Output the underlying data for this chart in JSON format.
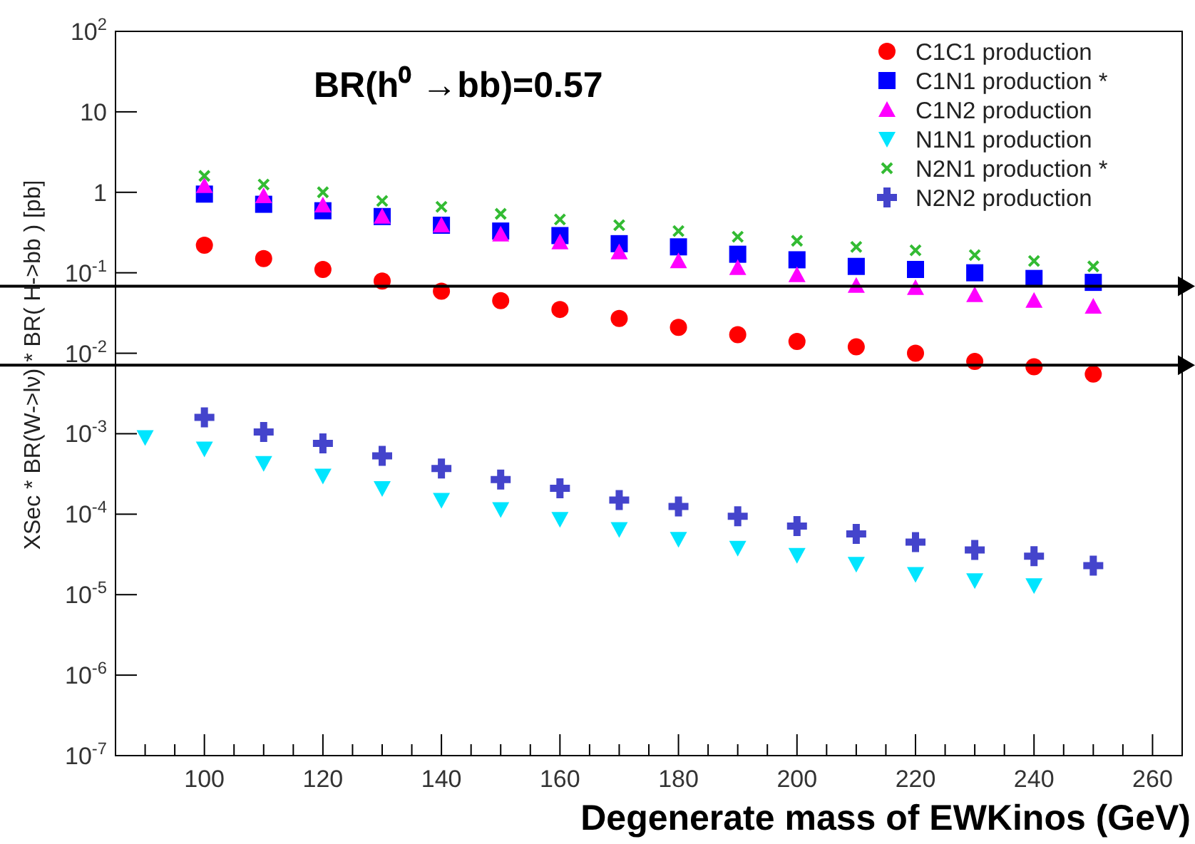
{
  "chart_data": {
    "type": "scatter",
    "xlabel": "Degenerate mass of EWKinos (GeV)",
    "ylabel": "XSec * BR(W->lν) * BR( H->bb ) [pb]",
    "annotations": [
      "BR(h⁰ →bb)=0.57"
    ],
    "log": "y",
    "grid": false,
    "legend": "top right",
    "xlim": [
      85,
      265
    ],
    "xticks": [
      {
        "value": 90,
        "label": null
      },
      {
        "value": 95,
        "label": null
      },
      100,
      {
        "value": 105,
        "label": null
      },
      {
        "value": 110,
        "label": null
      },
      {
        "value": 115,
        "label": null
      },
      120,
      {
        "value": 125,
        "label": null
      },
      {
        "value": 130,
        "label": null
      },
      {
        "value": 135,
        "label": null
      },
      140,
      {
        "value": 145,
        "label": null
      },
      {
        "value": 150,
        "label": null
      },
      {
        "value": 155,
        "label": null
      },
      160,
      {
        "value": 165,
        "label": null
      },
      {
        "value": 170,
        "label": null
      },
      {
        "value": 175,
        "label": null
      },
      180,
      {
        "value": 185,
        "label": null
      },
      {
        "value": 190,
        "label": null
      },
      {
        "value": 195,
        "label": null
      },
      200,
      {
        "value": 205,
        "label": null
      },
      {
        "value": 210,
        "label": null
      },
      {
        "value": 215,
        "label": null
      },
      220,
      {
        "value": 225,
        "label": null
      },
      {
        "value": 230,
        "label": null
      },
      {
        "value": 235,
        "label": null
      },
      240,
      {
        "value": 245,
        "label": null
      },
      {
        "value": 250,
        "label": null
      },
      {
        "value": 255,
        "label": null
      },
      260
    ],
    "ylim": [
      1e-07,
      100
    ],
    "yticks": [
      {
        "value": 1e-07,
        "label": "10$^{-7}$"
      },
      {
        "value": 1e-06,
        "label": "10$^{-6}$"
      },
      {
        "value": 1e-05,
        "label": "10$^{-5}$"
      },
      {
        "value": 0.0001,
        "label": "10$^{-4}$"
      },
      {
        "value": 0.001,
        "label": "10$^{-3}$"
      },
      {
        "value": 0.01,
        "label": "10$^{-2}$"
      },
      {
        "value": 0.1,
        "label": "10$^{-1}$"
      },
      1,
      10,
      {
        "value": 100,
        "label": "10$^{2}$"
      }
    ],
    "ref_lines": [
      {
        "axis": "y",
        "value": 0.068,
        "color": "#000000"
      },
      {
        "axis": "y",
        "value": 0.0071,
        "color": "#000000"
      }
    ],
    "series": [
      {
        "name": "C1C1 production",
        "color": "#ff0000",
        "marker": "circle",
        "x": [
          100,
          110,
          120,
          130,
          140,
          150,
          160,
          170,
          180,
          190,
          200,
          210,
          220,
          230,
          240,
          250
        ],
        "values": [
          0.22,
          0.15,
          0.11,
          0.079,
          0.059,
          0.045,
          0.035,
          0.027,
          0.021,
          0.017,
          0.014,
          0.012,
          0.01,
          0.0079,
          0.0068,
          0.0055
        ]
      },
      {
        "name": "C1N1 production *",
        "color": "#0000ff",
        "marker": "square",
        "x": [
          100,
          110,
          120,
          130,
          140,
          150,
          160,
          170,
          180,
          190,
          200,
          210,
          220,
          230,
          240,
          250
        ],
        "values": [
          0.95,
          0.71,
          0.59,
          0.5,
          0.39,
          0.33,
          0.29,
          0.23,
          0.21,
          0.17,
          0.145,
          0.12,
          0.11,
          0.1,
          0.085,
          0.076
        ]
      },
      {
        "name": "C1N2 production",
        "color": "#ff00ff",
        "marker": "triangle",
        "x": [
          100,
          110,
          120,
          130,
          140,
          150,
          160,
          170,
          180,
          190,
          200,
          210,
          220,
          230,
          240,
          250
        ],
        "values": [
          1.2,
          0.9,
          0.69,
          0.5,
          0.39,
          0.3,
          0.24,
          0.18,
          0.14,
          0.115,
          0.094,
          0.069,
          0.065,
          0.053,
          0.045,
          0.038
        ]
      },
      {
        "name": "N1N1 production",
        "color": "#00e5ff",
        "marker": "triangle-down",
        "x": [
          90,
          100,
          110,
          120,
          130,
          140,
          150,
          160,
          170,
          180,
          190,
          200,
          210,
          220,
          230,
          240
        ],
        "values": [
          0.0009,
          0.00065,
          0.00043,
          0.0003,
          0.00021,
          0.00015,
          0.000115,
          8.7e-05,
          6.5e-05,
          4.9e-05,
          3.8e-05,
          3.1e-05,
          2.4e-05,
          1.8e-05,
          1.5e-05,
          1.3e-05
        ]
      },
      {
        "name": "N2N1 production *",
        "color": "#33bb33",
        "marker": "cross",
        "x": [
          100,
          110,
          120,
          130,
          140,
          150,
          160,
          170,
          180,
          190,
          200,
          210,
          220,
          230,
          240,
          250
        ],
        "values": [
          1.6,
          1.25,
          1.0,
          0.78,
          0.66,
          0.54,
          0.46,
          0.39,
          0.33,
          0.28,
          0.25,
          0.21,
          0.19,
          0.166,
          0.14,
          0.12
        ]
      },
      {
        "name": "N2N2 production",
        "color": "#4444cc",
        "marker": "plus",
        "x": [
          100,
          110,
          120,
          130,
          140,
          150,
          160,
          170,
          180,
          190,
          200,
          210,
          220,
          230,
          240,
          250
        ],
        "values": [
          0.0016,
          0.00105,
          0.00076,
          0.00053,
          0.00037,
          0.00027,
          0.00021,
          0.00015,
          0.000125,
          9.4e-05,
          7.1e-05,
          5.7e-05,
          4.5e-05,
          3.6e-05,
          3e-05,
          2.3e-05
        ]
      }
    ]
  }
}
